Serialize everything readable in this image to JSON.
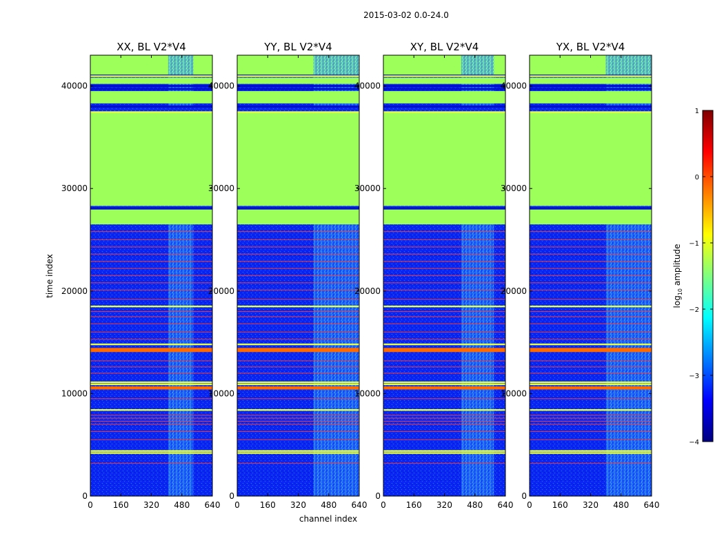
{
  "figure": {
    "suptitle": "2015-03-02 0.0-24.0",
    "xlabel": "channel index",
    "ylabel": "time index"
  },
  "chart_data": [
    {
      "type": "heatmap",
      "title": "XX, BL V2*V4",
      "xticks": [
        0,
        160,
        320,
        480,
        640
      ],
      "yticks": [
        0,
        10000,
        20000,
        30000,
        40000
      ],
      "xlim": [
        0,
        640
      ],
      "ylim": [
        0,
        43000
      ],
      "rfi_block_x": [
        408,
        540
      ]
    },
    {
      "type": "heatmap",
      "title": "YY, BL V2*V4",
      "xticks": [
        0,
        160,
        320,
        480,
        640
      ],
      "yticks": [
        0,
        10000,
        20000,
        30000,
        40000
      ],
      "xlim": [
        0,
        640
      ],
      "ylim": [
        0,
        43000
      ],
      "rfi_block_x": [
        400,
        640
      ]
    },
    {
      "type": "heatmap",
      "title": "XY, BL V2*V4",
      "xticks": [
        0,
        160,
        320,
        480,
        640
      ],
      "yticks": [
        0,
        10000,
        20000,
        30000,
        40000
      ],
      "xlim": [
        0,
        640
      ],
      "ylim": [
        0,
        43000
      ],
      "rfi_block_x": [
        408,
        580
      ]
    },
    {
      "type": "heatmap",
      "title": "YX, BL V2*V4",
      "xticks": [
        0,
        160,
        320,
        480,
        640
      ],
      "yticks": [
        0,
        10000,
        20000,
        30000,
        40000
      ],
      "xlim": [
        0,
        640
      ],
      "ylim": [
        0,
        43000
      ],
      "rfi_block_x": [
        400,
        640
      ]
    }
  ],
  "shared_bands": {
    "flagged_green_ranges": [
      [
        26500,
        28000
      ],
      [
        28300,
        37500
      ],
      [
        38300,
        39500
      ],
      [
        40200,
        40800
      ],
      [
        41100,
        43000
      ]
    ],
    "dark_lines": [
      28050,
      38000,
      39700,
      40000,
      41000
    ],
    "orange_bands": [
      [
        14050,
        14450
      ],
      [
        10400,
        10700
      ]
    ],
    "yellow_lines": [
      4200,
      4400,
      8400,
      10900,
      11100,
      14800,
      18500,
      37450,
      40950
    ],
    "red_lines": [
      3200,
      5500,
      6300,
      7000,
      7300,
      7600,
      7900,
      9500,
      12000,
      12600,
      13200,
      15300,
      16000,
      16800,
      17500,
      18000,
      19200,
      20100,
      20800,
      21500,
      22200,
      22900,
      23600,
      24300,
      25000,
      25800
    ]
  },
  "colorbar": {
    "label_prefix": "log",
    "label_sub": "10",
    "label_suffix": " amplitude",
    "ticks": [
      1,
      0,
      -1,
      -2,
      -3,
      -4
    ],
    "tick_labels": [
      "1",
      "0",
      "−1",
      "−2",
      "−3",
      "−4"
    ],
    "min": -4,
    "max": 1,
    "colors": [
      "#00007f",
      "#0000ff",
      "#007fff",
      "#00ffff",
      "#7fff7f",
      "#ffff00",
      "#ff7f00",
      "#ff0000",
      "#7f0000"
    ]
  }
}
